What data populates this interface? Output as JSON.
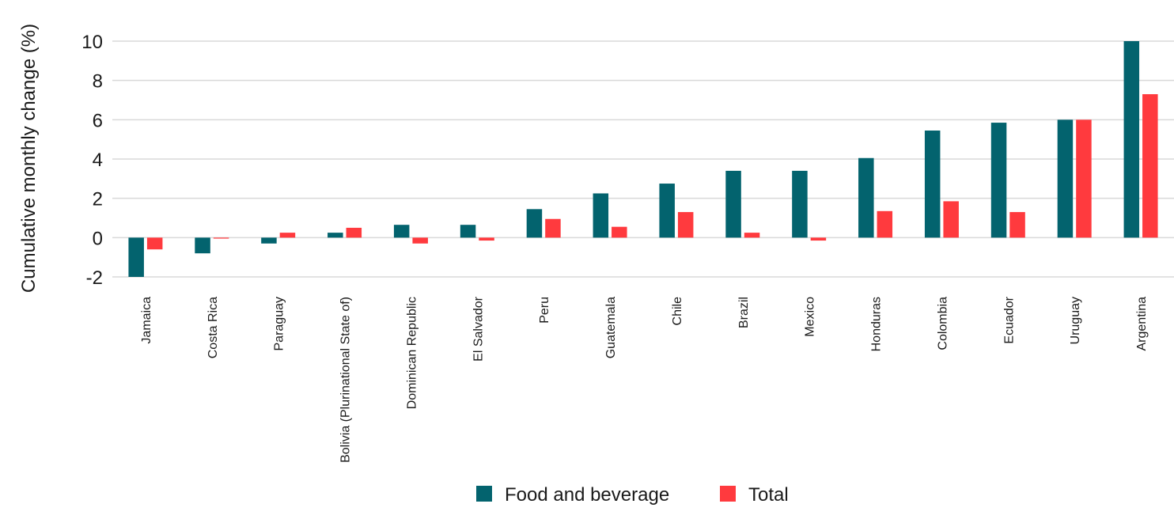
{
  "chart_data": {
    "type": "bar",
    "ylabel": "Cumulative monthly change (%)",
    "xlabel": "",
    "ylim": [
      -2,
      10
    ],
    "yticks": [
      -2,
      0,
      2,
      4,
      6,
      8,
      10
    ],
    "grid": true,
    "legend_position": "bottom",
    "categories": [
      "Jamaica",
      "Costa Rica",
      "Paraguay",
      "Bolivia (Plurinational State of)",
      "Dominican Republic",
      "El Salvador",
      "Peru",
      "Guatemala",
      "Chile",
      "Brazil",
      "Mexico",
      "Honduras",
      "Colombia",
      "Ecuador",
      "Uruguay",
      "Argentina"
    ],
    "series": [
      {
        "name": "Food and beverage",
        "color": "#03636e",
        "values": [
          -2.0,
          -0.8,
          -0.3,
          0.25,
          0.65,
          0.65,
          1.45,
          2.25,
          2.75,
          3.4,
          3.4,
          4.05,
          5.45,
          5.85,
          6.0,
          10.0
        ]
      },
      {
        "name": "Total",
        "color": "#ff3a3e",
        "values": [
          -0.6,
          -0.05,
          0.25,
          0.5,
          -0.3,
          -0.15,
          0.95,
          0.55,
          1.3,
          0.25,
          -0.15,
          1.35,
          1.85,
          1.3,
          6.0,
          7.3
        ]
      }
    ]
  }
}
